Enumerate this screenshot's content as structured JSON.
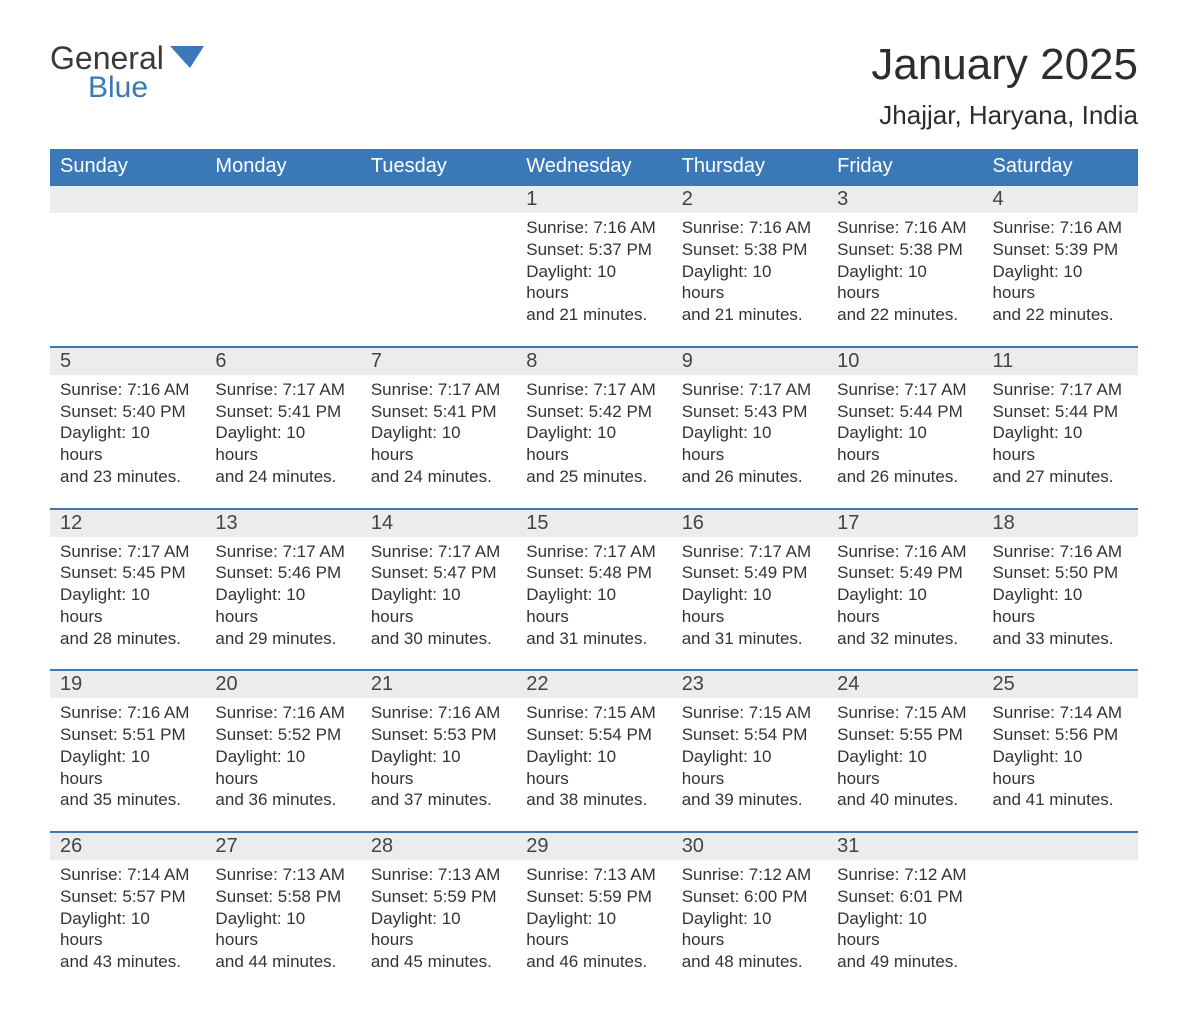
{
  "brand": {
    "word1": "General",
    "word2": "Blue",
    "accent_color": "#3a78b7"
  },
  "title": "January 2025",
  "location": "Jhajjar, Haryana, India",
  "colors": {
    "header_bg": "#3a78b7",
    "header_fg": "#ffffff",
    "daynum_bg": "#ececec",
    "text": "#333333",
    "rule": "#3a78b7",
    "page_bg": "#ffffff"
  },
  "typography": {
    "title_fontsize": 44,
    "location_fontsize": 26,
    "header_fontsize": 20,
    "daynum_fontsize": 20,
    "body_fontsize": 17
  },
  "weekdays": [
    "Sunday",
    "Monday",
    "Tuesday",
    "Wednesday",
    "Thursday",
    "Friday",
    "Saturday"
  ],
  "weeks": [
    [
      null,
      null,
      null,
      {
        "n": "1",
        "sunrise": "Sunrise: 7:16 AM",
        "sunset": "Sunset: 5:37 PM",
        "dayl1": "Daylight: 10 hours",
        "dayl2": "and 21 minutes."
      },
      {
        "n": "2",
        "sunrise": "Sunrise: 7:16 AM",
        "sunset": "Sunset: 5:38 PM",
        "dayl1": "Daylight: 10 hours",
        "dayl2": "and 21 minutes."
      },
      {
        "n": "3",
        "sunrise": "Sunrise: 7:16 AM",
        "sunset": "Sunset: 5:38 PM",
        "dayl1": "Daylight: 10 hours",
        "dayl2": "and 22 minutes."
      },
      {
        "n": "4",
        "sunrise": "Sunrise: 7:16 AM",
        "sunset": "Sunset: 5:39 PM",
        "dayl1": "Daylight: 10 hours",
        "dayl2": "and 22 minutes."
      }
    ],
    [
      {
        "n": "5",
        "sunrise": "Sunrise: 7:16 AM",
        "sunset": "Sunset: 5:40 PM",
        "dayl1": "Daylight: 10 hours",
        "dayl2": "and 23 minutes."
      },
      {
        "n": "6",
        "sunrise": "Sunrise: 7:17 AM",
        "sunset": "Sunset: 5:41 PM",
        "dayl1": "Daylight: 10 hours",
        "dayl2": "and 24 minutes."
      },
      {
        "n": "7",
        "sunrise": "Sunrise: 7:17 AM",
        "sunset": "Sunset: 5:41 PM",
        "dayl1": "Daylight: 10 hours",
        "dayl2": "and 24 minutes."
      },
      {
        "n": "8",
        "sunrise": "Sunrise: 7:17 AM",
        "sunset": "Sunset: 5:42 PM",
        "dayl1": "Daylight: 10 hours",
        "dayl2": "and 25 minutes."
      },
      {
        "n": "9",
        "sunrise": "Sunrise: 7:17 AM",
        "sunset": "Sunset: 5:43 PM",
        "dayl1": "Daylight: 10 hours",
        "dayl2": "and 26 minutes."
      },
      {
        "n": "10",
        "sunrise": "Sunrise: 7:17 AM",
        "sunset": "Sunset: 5:44 PM",
        "dayl1": "Daylight: 10 hours",
        "dayl2": "and 26 minutes."
      },
      {
        "n": "11",
        "sunrise": "Sunrise: 7:17 AM",
        "sunset": "Sunset: 5:44 PM",
        "dayl1": "Daylight: 10 hours",
        "dayl2": "and 27 minutes."
      }
    ],
    [
      {
        "n": "12",
        "sunrise": "Sunrise: 7:17 AM",
        "sunset": "Sunset: 5:45 PM",
        "dayl1": "Daylight: 10 hours",
        "dayl2": "and 28 minutes."
      },
      {
        "n": "13",
        "sunrise": "Sunrise: 7:17 AM",
        "sunset": "Sunset: 5:46 PM",
        "dayl1": "Daylight: 10 hours",
        "dayl2": "and 29 minutes."
      },
      {
        "n": "14",
        "sunrise": "Sunrise: 7:17 AM",
        "sunset": "Sunset: 5:47 PM",
        "dayl1": "Daylight: 10 hours",
        "dayl2": "and 30 minutes."
      },
      {
        "n": "15",
        "sunrise": "Sunrise: 7:17 AM",
        "sunset": "Sunset: 5:48 PM",
        "dayl1": "Daylight: 10 hours",
        "dayl2": "and 31 minutes."
      },
      {
        "n": "16",
        "sunrise": "Sunrise: 7:17 AM",
        "sunset": "Sunset: 5:49 PM",
        "dayl1": "Daylight: 10 hours",
        "dayl2": "and 31 minutes."
      },
      {
        "n": "17",
        "sunrise": "Sunrise: 7:16 AM",
        "sunset": "Sunset: 5:49 PM",
        "dayl1": "Daylight: 10 hours",
        "dayl2": "and 32 minutes."
      },
      {
        "n": "18",
        "sunrise": "Sunrise: 7:16 AM",
        "sunset": "Sunset: 5:50 PM",
        "dayl1": "Daylight: 10 hours",
        "dayl2": "and 33 minutes."
      }
    ],
    [
      {
        "n": "19",
        "sunrise": "Sunrise: 7:16 AM",
        "sunset": "Sunset: 5:51 PM",
        "dayl1": "Daylight: 10 hours",
        "dayl2": "and 35 minutes."
      },
      {
        "n": "20",
        "sunrise": "Sunrise: 7:16 AM",
        "sunset": "Sunset: 5:52 PM",
        "dayl1": "Daylight: 10 hours",
        "dayl2": "and 36 minutes."
      },
      {
        "n": "21",
        "sunrise": "Sunrise: 7:16 AM",
        "sunset": "Sunset: 5:53 PM",
        "dayl1": "Daylight: 10 hours",
        "dayl2": "and 37 minutes."
      },
      {
        "n": "22",
        "sunrise": "Sunrise: 7:15 AM",
        "sunset": "Sunset: 5:54 PM",
        "dayl1": "Daylight: 10 hours",
        "dayl2": "and 38 minutes."
      },
      {
        "n": "23",
        "sunrise": "Sunrise: 7:15 AM",
        "sunset": "Sunset: 5:54 PM",
        "dayl1": "Daylight: 10 hours",
        "dayl2": "and 39 minutes."
      },
      {
        "n": "24",
        "sunrise": "Sunrise: 7:15 AM",
        "sunset": "Sunset: 5:55 PM",
        "dayl1": "Daylight: 10 hours",
        "dayl2": "and 40 minutes."
      },
      {
        "n": "25",
        "sunrise": "Sunrise: 7:14 AM",
        "sunset": "Sunset: 5:56 PM",
        "dayl1": "Daylight: 10 hours",
        "dayl2": "and 41 minutes."
      }
    ],
    [
      {
        "n": "26",
        "sunrise": "Sunrise: 7:14 AM",
        "sunset": "Sunset: 5:57 PM",
        "dayl1": "Daylight: 10 hours",
        "dayl2": "and 43 minutes."
      },
      {
        "n": "27",
        "sunrise": "Sunrise: 7:13 AM",
        "sunset": "Sunset: 5:58 PM",
        "dayl1": "Daylight: 10 hours",
        "dayl2": "and 44 minutes."
      },
      {
        "n": "28",
        "sunrise": "Sunrise: 7:13 AM",
        "sunset": "Sunset: 5:59 PM",
        "dayl1": "Daylight: 10 hours",
        "dayl2": "and 45 minutes."
      },
      {
        "n": "29",
        "sunrise": "Sunrise: 7:13 AM",
        "sunset": "Sunset: 5:59 PM",
        "dayl1": "Daylight: 10 hours",
        "dayl2": "and 46 minutes."
      },
      {
        "n": "30",
        "sunrise": "Sunrise: 7:12 AM",
        "sunset": "Sunset: 6:00 PM",
        "dayl1": "Daylight: 10 hours",
        "dayl2": "and 48 minutes."
      },
      {
        "n": "31",
        "sunrise": "Sunrise: 7:12 AM",
        "sunset": "Sunset: 6:01 PM",
        "dayl1": "Daylight: 10 hours",
        "dayl2": "and 49 minutes."
      },
      null
    ]
  ]
}
